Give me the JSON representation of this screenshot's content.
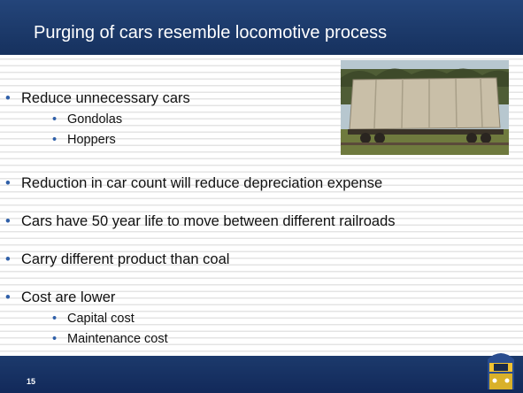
{
  "header": {
    "title": "Purging of cars resemble locomotive process"
  },
  "bullets": [
    {
      "text": "Reduce unnecessary cars",
      "sub": [
        "Gondolas",
        "Hoppers"
      ]
    },
    {
      "text": "Reduction in car count will reduce depreciation expense"
    },
    {
      "text": "Cars have 50 year life to move between different railroads"
    },
    {
      "text": "Carry different product than coal"
    },
    {
      "text": "Cost are lower",
      "sub": [
        "Capital cost",
        "Maintenance cost"
      ]
    }
  ],
  "footer": {
    "page_number": "15"
  }
}
